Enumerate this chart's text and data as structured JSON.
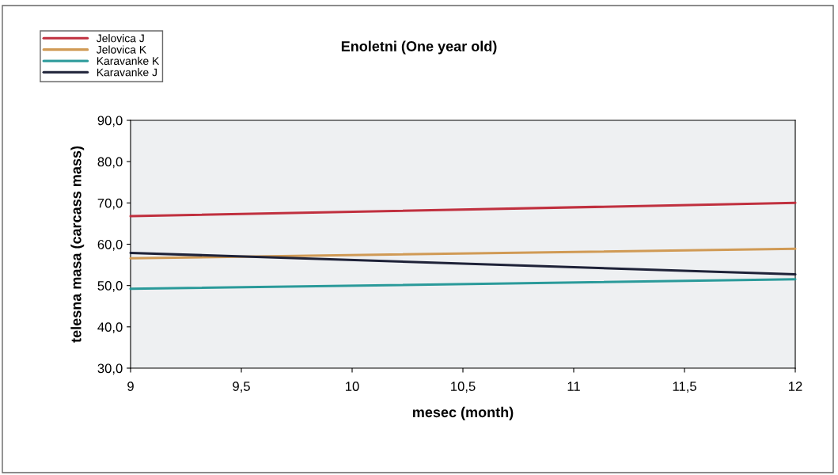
{
  "chart_data": {
    "type": "line",
    "title": "Enoletni (One year old)",
    "xlabel": "mesec (month)",
    "ylabel": "telesna masa (carcass mass)",
    "x": [
      9,
      12
    ],
    "series": [
      {
        "name": "Jelovica J",
        "color": "#c0303f",
        "values": [
          66.8,
          70.0
        ]
      },
      {
        "name": "Jelovica K",
        "color": "#d09a55",
        "values": [
          56.6,
          58.9
        ]
      },
      {
        "name": "Karavanke K",
        "color": "#2a9a9a",
        "values": [
          49.2,
          51.5
        ]
      },
      {
        "name": "Karavanke J",
        "color": "#1e2238",
        "values": [
          57.9,
          52.7
        ]
      }
    ],
    "xlim": [
      9,
      12
    ],
    "xticks": [
      9,
      {
        "value": 9.5,
        "label": "9,5"
      },
      10,
      {
        "value": 10.5,
        "label": "10,5"
      },
      11,
      {
        "value": 11.5,
        "label": "11,5"
      },
      12
    ],
    "ylim": [
      30,
      90
    ],
    "yticks": [
      {
        "value": 30,
        "label": "30,0"
      },
      {
        "value": 40,
        "label": "40,0"
      },
      {
        "value": 50,
        "label": "50,0"
      },
      {
        "value": 60,
        "label": "60,0"
      },
      {
        "value": 70,
        "label": "70,0"
      },
      {
        "value": 80,
        "label": "80,0"
      },
      {
        "value": 90,
        "label": "90,0"
      }
    ],
    "grid": false,
    "legend": "top left",
    "marker": "none",
    "line_style": "solid"
  }
}
